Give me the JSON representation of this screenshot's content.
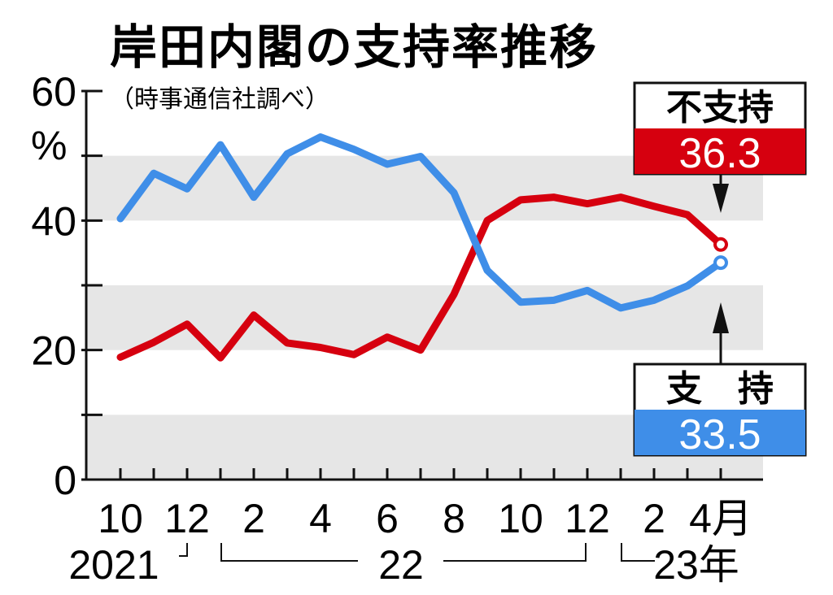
{
  "chart_data": {
    "type": "line",
    "title": "岸田内閣の支持率推移",
    "subtitle": "（時事通信社調べ）",
    "ylabel": "%",
    "ylim": [
      0,
      60
    ],
    "yticks": [
      "0",
      "20",
      "40",
      "60"
    ],
    "grid": "alternating gray bands",
    "x": [
      "2021-10",
      "2021-11",
      "2021-12",
      "2022-01",
      "2022-02",
      "2022-03",
      "2022-04",
      "2022-05",
      "2022-06",
      "2022-07",
      "2022-08",
      "2022-09",
      "2022-10",
      "2022-11",
      "2022-12",
      "2023-01",
      "2023-02",
      "2023-03",
      "2023-04"
    ],
    "xtick_labels": [
      "10",
      "12",
      "2",
      "4",
      "6",
      "8",
      "10",
      "12",
      "2",
      "4月"
    ],
    "year_labels": [
      "2021",
      "22",
      "23年"
    ],
    "series": [
      {
        "name": "不支持",
        "color": "#d6000f",
        "values": [
          18.9,
          21.2,
          24.0,
          18.8,
          25.4,
          21.1,
          20.4,
          19.3,
          22.0,
          20.0,
          28.6,
          40.0,
          43.2,
          43.6,
          42.6,
          43.6,
          42.2,
          40.9,
          36.3
        ],
        "latest_label": "36.3"
      },
      {
        "name": "支　持",
        "color": "#3f8ee8",
        "values": [
          40.3,
          47.3,
          44.9,
          51.7,
          43.6,
          50.3,
          52.9,
          51.0,
          48.7,
          49.9,
          44.3,
          32.3,
          27.4,
          27.7,
          29.2,
          26.5,
          27.7,
          29.9,
          33.5
        ],
        "latest_label": "33.5"
      }
    ]
  }
}
